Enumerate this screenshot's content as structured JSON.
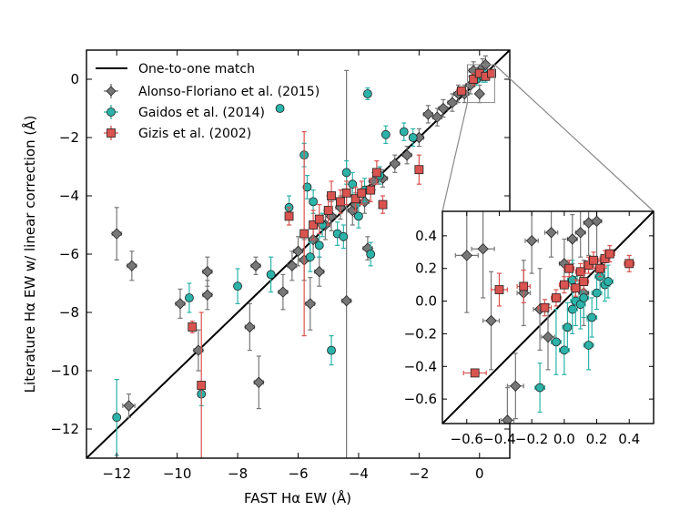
{
  "chart_data": {
    "type": "scatter",
    "title": "",
    "xlabel": "FAST Hα EW (Å)",
    "ylabel": "Literature Hα EW w/ linear correction (Å)",
    "xlim": [
      -13,
      1
    ],
    "ylim": [
      -13,
      1
    ],
    "xticks": [
      -12,
      -10,
      -8,
      -6,
      -4,
      -2,
      0
    ],
    "yticks": [
      -12,
      -10,
      -8,
      -6,
      -4,
      -2,
      0
    ],
    "xtick_labels": [
      "−12",
      "−10",
      "−8",
      "−6",
      "−4",
      "−2",
      "0"
    ],
    "ytick_labels": [
      "−12",
      "−10",
      "−8",
      "−6",
      "−4",
      "−2",
      "0"
    ],
    "reference_line": {
      "name": "One-to-one match",
      "color": "#000000"
    },
    "series": [
      {
        "name": "Alonso-Floriano et al. (2015)",
        "marker": "diamond",
        "color": "#777777",
        "points": [
          {
            "x": -12.0,
            "y": -5.3,
            "xerr": 0.15,
            "yerr": 0.9
          },
          {
            "x": -11.5,
            "y": -6.4,
            "xerr": 0.15,
            "yerr": 0.5
          },
          {
            "x": -11.6,
            "y": -11.2,
            "xerr": 0.2,
            "yerr": 0.4
          },
          {
            "x": -9.9,
            "y": -7.7,
            "xerr": 0.15,
            "yerr": 0.5
          },
          {
            "x": -9.3,
            "y": -9.3,
            "xerr": 0.15,
            "yerr": 0.7
          },
          {
            "x": -9.0,
            "y": -7.4,
            "xerr": 0.15,
            "yerr": 0.5
          },
          {
            "x": -9.0,
            "y": -6.6,
            "xerr": 0.15,
            "yerr": 0.5
          },
          {
            "x": -7.6,
            "y": -8.5,
            "xerr": 0.15,
            "yerr": 0.8
          },
          {
            "x": -7.4,
            "y": -6.4,
            "xerr": 0.15,
            "yerr": 0.3
          },
          {
            "x": -7.3,
            "y": -10.4,
            "xerr": 0.15,
            "yerr": 0.9
          },
          {
            "x": -6.5,
            "y": -7.3,
            "xerr": 0.15,
            "yerr": 0.6
          },
          {
            "x": -6.2,
            "y": -6.4,
            "xerr": 0.15,
            "yerr": 0.5
          },
          {
            "x": -6.0,
            "y": -5.9,
            "xerr": 0.15,
            "yerr": 0.5
          },
          {
            "x": -5.8,
            "y": -6.2,
            "xerr": 0.15,
            "yerr": 0.7
          },
          {
            "x": -5.6,
            "y": -7.7,
            "xerr": 0.15,
            "yerr": 0.9
          },
          {
            "x": -5.5,
            "y": -5.5,
            "xerr": 0.15,
            "yerr": 0.6
          },
          {
            "x": -5.3,
            "y": -6.6,
            "xerr": 0.15,
            "yerr": 0.5
          },
          {
            "x": -5.1,
            "y": -5.0,
            "xerr": 0.15,
            "yerr": 0.5
          },
          {
            "x": -4.9,
            "y": -4.7,
            "xerr": 0.15,
            "yerr": 0.5
          },
          {
            "x": -4.6,
            "y": -4.4,
            "xerr": 0.15,
            "yerr": 0.4
          },
          {
            "x": -4.4,
            "y": -7.6,
            "xerr": 0.15,
            "yerr": 7.9
          },
          {
            "x": -4.2,
            "y": -4.5,
            "xerr": 0.15,
            "yerr": 0.5
          },
          {
            "x": -4.1,
            "y": -4.3,
            "xerr": 0.15,
            "yerr": 0.4
          },
          {
            "x": -3.8,
            "y": -4.2,
            "xerr": 0.15,
            "yerr": 0.4
          },
          {
            "x": -3.7,
            "y": -5.8,
            "xerr": 0.15,
            "yerr": 0.4
          },
          {
            "x": -3.5,
            "y": -3.5,
            "xerr": 0.15,
            "yerr": 0.3
          },
          {
            "x": -3.2,
            "y": -3.4,
            "xerr": 0.15,
            "yerr": 0.3
          },
          {
            "x": -2.8,
            "y": -2.9,
            "xerr": 0.15,
            "yerr": 0.3
          },
          {
            "x": -2.4,
            "y": -2.6,
            "xerr": 0.15,
            "yerr": 0.3
          },
          {
            "x": -2.0,
            "y": -2.0,
            "xerr": 0.15,
            "yerr": 0.3
          },
          {
            "x": -1.7,
            "y": -1.2,
            "xerr": 0.15,
            "yerr": 0.3
          },
          {
            "x": -1.4,
            "y": -1.3,
            "xerr": 0.15,
            "yerr": 0.3
          },
          {
            "x": -1.2,
            "y": -1.0,
            "xerr": 0.15,
            "yerr": 0.3
          },
          {
            "x": -0.9,
            "y": -0.8,
            "xerr": 0.15,
            "yerr": 0.3
          },
          {
            "x": -0.7,
            "y": -0.5,
            "xerr": 0.15,
            "yerr": 0.3
          },
          {
            "x": -0.5,
            "y": -0.5,
            "xerr": 0.15,
            "yerr": 0.3
          },
          {
            "x": -0.3,
            "y": -0.2,
            "xerr": 0.15,
            "yerr": 0.3
          },
          {
            "x": -0.2,
            "y": 0.3,
            "xerr": 0.15,
            "yerr": 0.3
          },
          {
            "x": -0.1,
            "y": 0.1,
            "xerr": 0.1,
            "yerr": 0.3
          },
          {
            "x": 0.0,
            "y": -0.5,
            "xerr": 0.1,
            "yerr": 0.3
          },
          {
            "x": 0.1,
            "y": 0.4,
            "xerr": 0.1,
            "yerr": 0.3
          },
          {
            "x": 0.2,
            "y": 0.5,
            "xerr": 0.1,
            "yerr": 0.3
          }
        ]
      },
      {
        "name": "Gaidos et al. (2014)",
        "marker": "circle",
        "color": "#2bb3a9",
        "points": [
          {
            "x": -12.0,
            "y": -11.6,
            "xerr": 0.1,
            "yerr": 1.3
          },
          {
            "x": -9.6,
            "y": -7.5,
            "xerr": 0.1,
            "yerr": 0.5
          },
          {
            "x": -9.2,
            "y": -10.8,
            "xerr": 0.1,
            "yerr": 0.4
          },
          {
            "x": -8.0,
            "y": -7.1,
            "xerr": 0.1,
            "yerr": 0.6
          },
          {
            "x": -6.9,
            "y": -6.7,
            "xerr": 0.1,
            "yerr": 0.6
          },
          {
            "x": -6.6,
            "y": -1.0,
            "xerr": 0.1,
            "yerr": 0.1
          },
          {
            "x": -6.3,
            "y": -4.4,
            "xerr": 0.1,
            "yerr": 0.4
          },
          {
            "x": -5.8,
            "y": -2.6,
            "xerr": 0.1,
            "yerr": 0.4
          },
          {
            "x": -5.7,
            "y": -3.7,
            "xerr": 0.1,
            "yerr": 0.4
          },
          {
            "x": -5.6,
            "y": -6.1,
            "xerr": 0.1,
            "yerr": 0.5
          },
          {
            "x": -5.5,
            "y": -4.2,
            "xerr": 0.1,
            "yerr": 0.4
          },
          {
            "x": -5.3,
            "y": -5.7,
            "xerr": 0.1,
            "yerr": 0.4
          },
          {
            "x": -5.2,
            "y": -5.0,
            "xerr": 0.1,
            "yerr": 0.4
          },
          {
            "x": -4.9,
            "y": -9.3,
            "xerr": 0.1,
            "yerr": 0.5
          },
          {
            "x": -4.7,
            "y": -5.3,
            "xerr": 0.1,
            "yerr": 0.4
          },
          {
            "x": -4.5,
            "y": -5.4,
            "xerr": 0.1,
            "yerr": 0.4
          },
          {
            "x": -4.4,
            "y": -3.2,
            "xerr": 0.1,
            "yerr": 0.4
          },
          {
            "x": -4.2,
            "y": -3.6,
            "xerr": 0.1,
            "yerr": 0.4
          },
          {
            "x": -4.0,
            "y": -4.7,
            "xerr": 0.1,
            "yerr": 0.4
          },
          {
            "x": -3.8,
            "y": -3.8,
            "xerr": 0.1,
            "yerr": 0.4
          },
          {
            "x": -3.7,
            "y": -0.5,
            "xerr": 0.1,
            "yerr": 0.2
          },
          {
            "x": -3.6,
            "y": -6.0,
            "xerr": 0.1,
            "yerr": 0.4
          },
          {
            "x": -3.3,
            "y": -3.3,
            "xerr": 0.1,
            "yerr": 0.3
          },
          {
            "x": -3.1,
            "y": -1.9,
            "xerr": 0.1,
            "yerr": 0.3
          },
          {
            "x": -2.5,
            "y": -1.8,
            "xerr": 0.1,
            "yerr": 0.3
          },
          {
            "x": -2.2,
            "y": -2.0,
            "xerr": 0.1,
            "yerr": 0.3
          },
          {
            "x": -0.1,
            "y": 0.0,
            "xerr": 0.1,
            "yerr": 0.2
          },
          {
            "x": 0.1,
            "y": 0.1,
            "xerr": 0.1,
            "yerr": 0.2
          },
          {
            "x": 0.2,
            "y": 0.1,
            "xerr": 0.1,
            "yerr": 0.2
          }
        ]
      },
      {
        "name": "Gizis et al. (2002)",
        "marker": "square",
        "color": "#d9534f",
        "points": [
          {
            "x": -9.5,
            "y": -8.5,
            "xerr": 0.1,
            "yerr": 0.2
          },
          {
            "x": -9.2,
            "y": -10.5,
            "xerr": 0.1,
            "yerr": 2.5
          },
          {
            "x": -6.3,
            "y": -4.7,
            "xerr": 0.1,
            "yerr": 0.3
          },
          {
            "x": -5.8,
            "y": -5.3,
            "xerr": 0.1,
            "yerr": 3.5
          },
          {
            "x": -5.5,
            "y": -5.0,
            "xerr": 0.1,
            "yerr": 0.5
          },
          {
            "x": -5.3,
            "y": -4.8,
            "xerr": 0.1,
            "yerr": 0.5
          },
          {
            "x": -5.0,
            "y": -4.5,
            "xerr": 0.1,
            "yerr": 0.5
          },
          {
            "x": -4.9,
            "y": -4.0,
            "xerr": 0.1,
            "yerr": 0.5
          },
          {
            "x": -4.6,
            "y": -4.2,
            "xerr": 0.1,
            "yerr": 0.4
          },
          {
            "x": -4.4,
            "y": -3.9,
            "xerr": 0.1,
            "yerr": 0.4
          },
          {
            "x": -4.1,
            "y": -4.1,
            "xerr": 0.1,
            "yerr": 0.4
          },
          {
            "x": -3.9,
            "y": -3.9,
            "xerr": 0.1,
            "yerr": 0.4
          },
          {
            "x": -3.6,
            "y": -3.8,
            "xerr": 0.1,
            "yerr": 0.4
          },
          {
            "x": -3.4,
            "y": -3.2,
            "xerr": 0.1,
            "yerr": 0.4
          },
          {
            "x": -3.2,
            "y": -4.3,
            "xerr": 0.1,
            "yerr": 0.3
          },
          {
            "x": -2.0,
            "y": -3.1,
            "xerr": 0.1,
            "yerr": 0.5
          },
          {
            "x": -0.6,
            "y": -0.4,
            "xerr": 0.15,
            "yerr": 0.1
          },
          {
            "x": -0.2,
            "y": 0.0,
            "xerr": 0.1,
            "yerr": 0.2
          },
          {
            "x": 0.0,
            "y": 0.2,
            "xerr": 0.1,
            "yerr": 0.1
          },
          {
            "x": 0.2,
            "y": 0.1,
            "xerr": 0.1,
            "yerr": 0.1
          },
          {
            "x": 0.4,
            "y": 0.2,
            "xerr": 0.1,
            "yerr": 0.1
          }
        ]
      }
    ],
    "legend": {
      "location": "top-left",
      "entries": [
        "One-to-one match",
        "Alonso-Floriano et al. (2015)",
        "Gaidos et al. (2014)",
        "Gizis et al. (2002)"
      ]
    },
    "inset": {
      "xlim": [
        -0.75,
        0.55
      ],
      "ylim": [
        -0.75,
        0.55
      ],
      "xticks": [
        -0.6,
        -0.4,
        -0.2,
        0.0,
        0.2,
        0.4
      ],
      "yticks": [
        -0.6,
        -0.4,
        -0.2,
        0.0,
        0.2,
        0.4
      ],
      "xtick_labels": [
        "−0.6",
        "−0.4",
        "−0.2",
        "0.0",
        "0.2",
        "0.4"
      ],
      "ytick_labels": [
        "−0.6",
        "−0.4",
        "−0.2",
        "0.0",
        "0.2",
        "0.4"
      ],
      "zoom_region": {
        "x": [
          -0.4,
          0.5
        ],
        "y": [
          -0.8,
          0.5
        ]
      },
      "points": [
        {
          "series": 0,
          "x": -0.6,
          "y": 0.28,
          "xerr": 0.07,
          "yerr": 0.35
        },
        {
          "series": 0,
          "x": -0.5,
          "y": 0.32,
          "xerr": 0.07,
          "yerr": 0.3
        },
        {
          "series": 0,
          "x": -0.45,
          "y": -0.12,
          "xerr": 0.05,
          "yerr": 0.3
        },
        {
          "series": 0,
          "x": -0.3,
          "y": -0.52,
          "xerr": 0.05,
          "yerr": 0.2
        },
        {
          "series": 0,
          "x": -0.35,
          "y": -0.73,
          "xerr": 0.04,
          "yerr": 0.2
        },
        {
          "series": 0,
          "x": -0.2,
          "y": 0.37,
          "xerr": 0.04,
          "yerr": 0.2
        },
        {
          "series": 0,
          "x": -0.15,
          "y": -0.05,
          "xerr": 0.04,
          "yerr": 0.25
        },
        {
          "series": 0,
          "x": -0.1,
          "y": -0.22,
          "xerr": 0.04,
          "yerr": 0.2
        },
        {
          "series": 0,
          "x": -0.08,
          "y": 0.42,
          "xerr": 0.04,
          "yerr": 0.15
        },
        {
          "series": 0,
          "x": 0.0,
          "y": 0.23,
          "xerr": 0.03,
          "yerr": 0.15
        },
        {
          "series": 0,
          "x": 0.05,
          "y": 0.38,
          "xerr": 0.03,
          "yerr": 0.15
        },
        {
          "series": 0,
          "x": 0.1,
          "y": 0.42,
          "xerr": 0.03,
          "yerr": 0.15
        },
        {
          "series": 0,
          "x": 0.15,
          "y": 0.48,
          "xerr": 0.03,
          "yerr": 0.2
        },
        {
          "series": 0,
          "x": 0.2,
          "y": 0.49,
          "xerr": 0.03,
          "yerr": 0.25
        },
        {
          "series": 0,
          "x": 0.12,
          "y": 0.05,
          "xerr": 0.03,
          "yerr": 0.2
        },
        {
          "series": 0,
          "x": -0.25,
          "y": 0.05,
          "xerr": 0.04,
          "yerr": 0.2
        },
        {
          "series": 1,
          "x": -0.05,
          "y": -0.25,
          "xerr": 0.03,
          "yerr": 0.2
        },
        {
          "series": 1,
          "x": 0.0,
          "y": -0.3,
          "xerr": 0.03,
          "yerr": 0.15
        },
        {
          "series": 1,
          "x": 0.02,
          "y": -0.16,
          "xerr": 0.03,
          "yerr": 0.15
        },
        {
          "series": 1,
          "x": 0.05,
          "y": -0.05,
          "xerr": 0.03,
          "yerr": 0.15
        },
        {
          "series": 1,
          "x": 0.07,
          "y": 0.0,
          "xerr": 0.03,
          "yerr": 0.15
        },
        {
          "series": 1,
          "x": 0.1,
          "y": -0.02,
          "xerr": 0.03,
          "yerr": 0.15
        },
        {
          "series": 1,
          "x": 0.12,
          "y": 0.02,
          "xerr": 0.03,
          "yerr": 0.12
        },
        {
          "series": 1,
          "x": 0.15,
          "y": -0.27,
          "xerr": 0.03,
          "yerr": 0.15
        },
        {
          "series": 1,
          "x": 0.17,
          "y": -0.1,
          "xerr": 0.03,
          "yerr": 0.12
        },
        {
          "series": 1,
          "x": 0.2,
          "y": 0.05,
          "xerr": 0.03,
          "yerr": 0.1
        },
        {
          "series": 1,
          "x": 0.22,
          "y": 0.15,
          "xerr": 0.03,
          "yerr": 0.1
        },
        {
          "series": 1,
          "x": 0.25,
          "y": 0.1,
          "xerr": 0.03,
          "yerr": 0.1
        },
        {
          "series": 1,
          "x": 0.27,
          "y": 0.12,
          "xerr": 0.03,
          "yerr": 0.1
        },
        {
          "series": 1,
          "x": -0.15,
          "y": -0.53,
          "xerr": 0.03,
          "yerr": 0.15
        },
        {
          "series": 1,
          "x": 0.05,
          "y": 0.13,
          "xerr": 0.03,
          "yerr": 0.12
        },
        {
          "series": 2,
          "x": -0.55,
          "y": -0.44,
          "xerr": 0.07,
          "yerr": 0.02
        },
        {
          "series": 2,
          "x": -0.4,
          "y": 0.07,
          "xerr": 0.05,
          "yerr": 0.1
        },
        {
          "series": 2,
          "x": -0.25,
          "y": 0.09,
          "xerr": 0.04,
          "yerr": 0.1
        },
        {
          "series": 2,
          "x": -0.12,
          "y": -0.04,
          "xerr": 0.04,
          "yerr": 0.05
        },
        {
          "series": 2,
          "x": -0.05,
          "y": 0.02,
          "xerr": 0.03,
          "yerr": 0.05
        },
        {
          "series": 2,
          "x": 0.0,
          "y": 0.1,
          "xerr": 0.03,
          "yerr": 0.05
        },
        {
          "series": 2,
          "x": 0.03,
          "y": 0.2,
          "xerr": 0.03,
          "yerr": 0.05
        },
        {
          "series": 2,
          "x": 0.07,
          "y": 0.08,
          "xerr": 0.03,
          "yerr": 0.05
        },
        {
          "series": 2,
          "x": 0.1,
          "y": 0.18,
          "xerr": 0.03,
          "yerr": 0.05
        },
        {
          "series": 2,
          "x": 0.15,
          "y": 0.22,
          "xerr": 0.03,
          "yerr": 0.05
        },
        {
          "series": 2,
          "x": 0.18,
          "y": 0.25,
          "xerr": 0.03,
          "yerr": 0.05
        },
        {
          "series": 2,
          "x": 0.22,
          "y": 0.2,
          "xerr": 0.03,
          "yerr": 0.05
        },
        {
          "series": 2,
          "x": 0.25,
          "y": 0.26,
          "xerr": 0.03,
          "yerr": 0.05
        },
        {
          "series": 2,
          "x": 0.28,
          "y": 0.29,
          "xerr": 0.03,
          "yerr": 0.05
        },
        {
          "series": 2,
          "x": 0.4,
          "y": 0.23,
          "xerr": 0.03,
          "yerr": 0.05
        },
        {
          "series": 2,
          "x": 0.12,
          "y": 0.12,
          "xerr": 0.03,
          "yerr": 0.05
        }
      ]
    }
  }
}
